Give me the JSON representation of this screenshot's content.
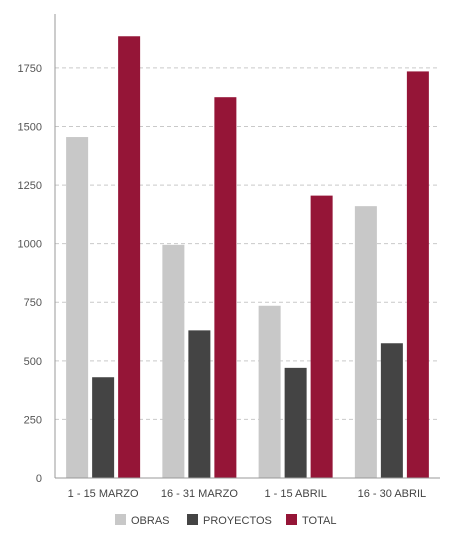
{
  "chart_data": {
    "type": "bar",
    "categories": [
      "1 - 15 MARZO",
      "16 - 31 MARZO",
      "1 - 15 ABRIL",
      "16 - 30 ABRIL"
    ],
    "series": [
      {
        "name": "OBRAS",
        "color": "#c8c8c8",
        "values": [
          1455,
          995,
          735,
          1160
        ]
      },
      {
        "name": "PROYECTOS",
        "color": "#444444",
        "values": [
          430,
          630,
          470,
          575
        ]
      },
      {
        "name": "TOTAL",
        "color": "#951537",
        "values": [
          1885,
          1625,
          1205,
          1735
        ]
      }
    ],
    "yticks": [
      0,
      250,
      500,
      750,
      1000,
      1250,
      1500,
      1750
    ],
    "ylim": [
      0,
      1980
    ],
    "grid": true,
    "legend_position": "bottom-center"
  }
}
